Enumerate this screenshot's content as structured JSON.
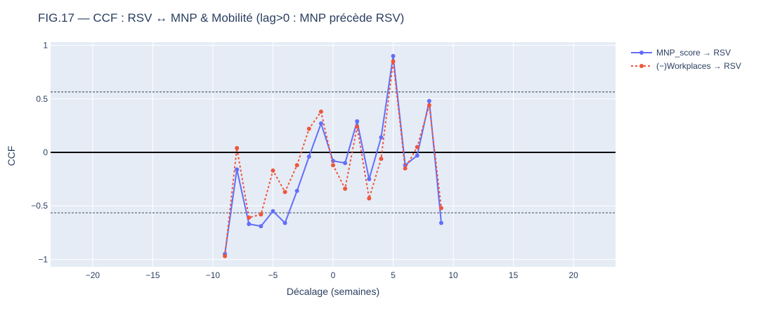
{
  "chart_data": {
    "type": "line",
    "title": "FIG.17 — CCF : RSV ↔ MNP & Mobilité (lag>0 : MNP précède RSV)",
    "xlabel": "Décalage (semaines)",
    "ylabel": "CCF",
    "xlim": [
      -23.5,
      23.5
    ],
    "ylim": [
      -1.07,
      1.03
    ],
    "x_ticks": [
      -20,
      -15,
      -10,
      -5,
      0,
      5,
      10,
      15,
      20
    ],
    "x_tick_labels": [
      "−20",
      "−15",
      "−10",
      "−5",
      "0",
      "5",
      "10",
      "15",
      "20"
    ],
    "y_ticks": [
      -1,
      -0.5,
      0,
      0.5,
      1
    ],
    "y_tick_labels": [
      "−1",
      "−0.5",
      "0",
      "0.5",
      "1"
    ],
    "zero_line": 0,
    "confidence_bounds": [
      0.565,
      -0.565
    ],
    "grid": true,
    "legend_position": "top-right",
    "x": [
      -9,
      -8,
      -7,
      -6,
      -5,
      -4,
      -3,
      -2,
      -1,
      0,
      1,
      2,
      3,
      4,
      5,
      6,
      7,
      8,
      9
    ],
    "series": [
      {
        "name": "MNP_score → RSV",
        "color": "#636efa",
        "dash": "solid",
        "values": [
          -0.95,
          -0.16,
          -0.67,
          -0.69,
          -0.55,
          -0.66,
          -0.36,
          -0.04,
          0.27,
          -0.08,
          -0.1,
          0.29,
          -0.25,
          0.14,
          0.9,
          -0.12,
          -0.03,
          0.48,
          -0.66
        ]
      },
      {
        "name": "(−)Workplaces → RSV",
        "color": "#ef553b",
        "dash": "dot",
        "values": [
          -0.97,
          0.04,
          -0.61,
          -0.58,
          -0.17,
          -0.37,
          -0.12,
          0.22,
          0.38,
          -0.12,
          -0.34,
          0.24,
          -0.43,
          -0.06,
          0.85,
          -0.15,
          0.05,
          0.44,
          -0.52
        ]
      }
    ]
  }
}
